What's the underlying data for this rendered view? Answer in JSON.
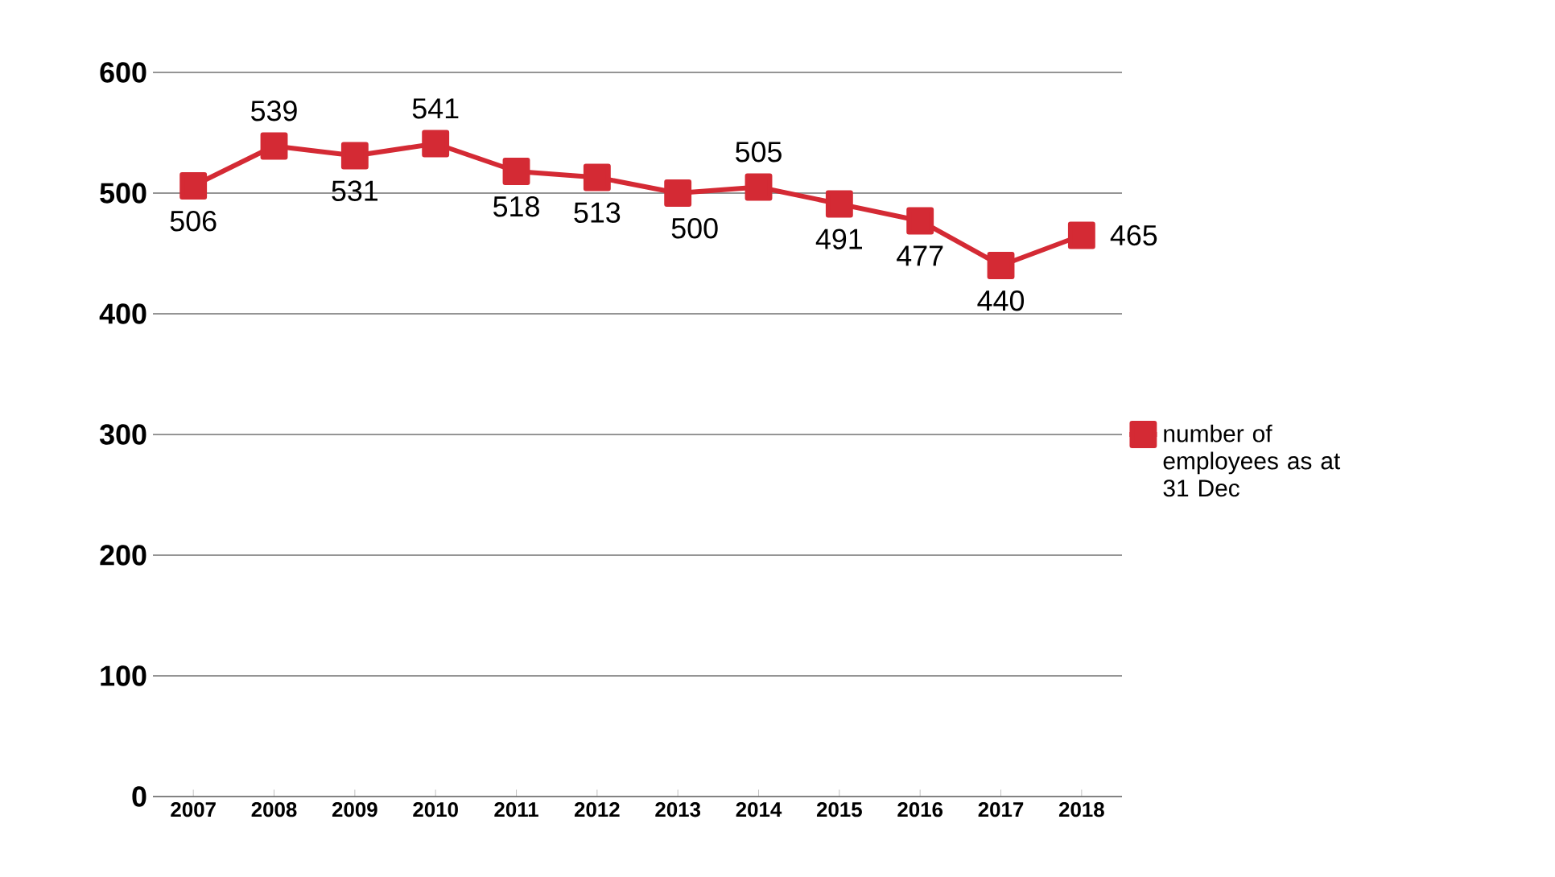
{
  "chart_data": {
    "type": "line",
    "categories": [
      "2007",
      "2008",
      "2009",
      "2010",
      "2011",
      "2012",
      "2013",
      "2014",
      "2015",
      "2016",
      "2017",
      "2018"
    ],
    "series": [
      {
        "name": "number of employees as at 31 Dec",
        "color": "#d42a34",
        "values": [
          506,
          539,
          531,
          541,
          518,
          513,
          500,
          505,
          491,
          477,
          440,
          465
        ]
      }
    ],
    "ylim": [
      0,
      600
    ],
    "yticks": [
      0,
      100,
      200,
      300,
      400,
      500,
      600
    ],
    "grid": "y",
    "legend": "right",
    "marker": "square",
    "line_style": "solid",
    "data_labels": true
  }
}
